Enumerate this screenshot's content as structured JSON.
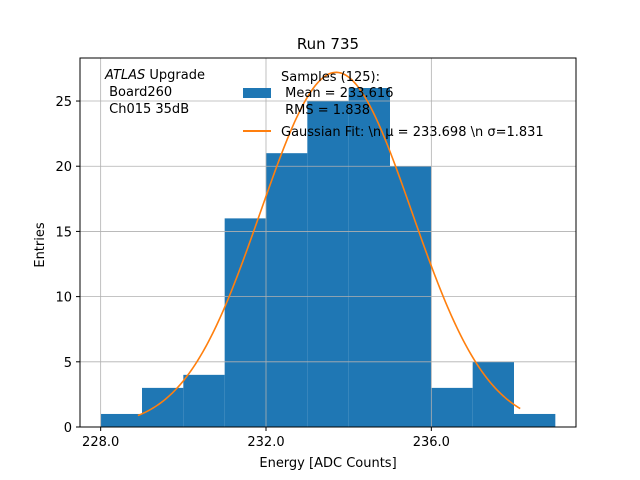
{
  "chart_data": {
    "type": "histogram",
    "title": "Run 735",
    "xlabel": "Energy [ADC Counts]",
    "ylabel": "Entries",
    "xlim": [
      227.5,
      239.5
    ],
    "ylim": [
      0,
      28.3
    ],
    "grid": true,
    "bin_edges": [
      228,
      229,
      230,
      231,
      232,
      233,
      234,
      235,
      236,
      237,
      238,
      239
    ],
    "counts": [
      1,
      3,
      4,
      16,
      21,
      25,
      26,
      20,
      3,
      5,
      1
    ],
    "bar_color": "#1f77b4",
    "fit": {
      "type": "gaussian",
      "mu": 233.698,
      "sigma": 1.831,
      "amplitude": 27.2,
      "x_range": [
        228.9,
        238.15
      ],
      "color": "#ff7f0e"
    },
    "x_ticks": [
      228,
      232,
      236
    ],
    "x_tick_labels": [
      "228.0",
      "232.0",
      "236.0"
    ],
    "y_ticks": [
      0,
      5,
      10,
      15,
      20,
      25
    ],
    "y_tick_labels": [
      "0",
      "5",
      "10",
      "15",
      "20",
      "25"
    ],
    "annotation": {
      "atlas": "ATLAS",
      "upgrade": " Upgrade",
      "line2": " Board260",
      "line3": " Ch015 35dB"
    },
    "legend": {
      "placement": "top-right",
      "samples_line1": "Samples (125):",
      "samples_line2": " Mean = 233.616",
      "samples_line3": " RMS = 1.838",
      "fit_label": "Gaussian Fit: \\n μ = 233.698 \\n σ=1.831"
    }
  }
}
